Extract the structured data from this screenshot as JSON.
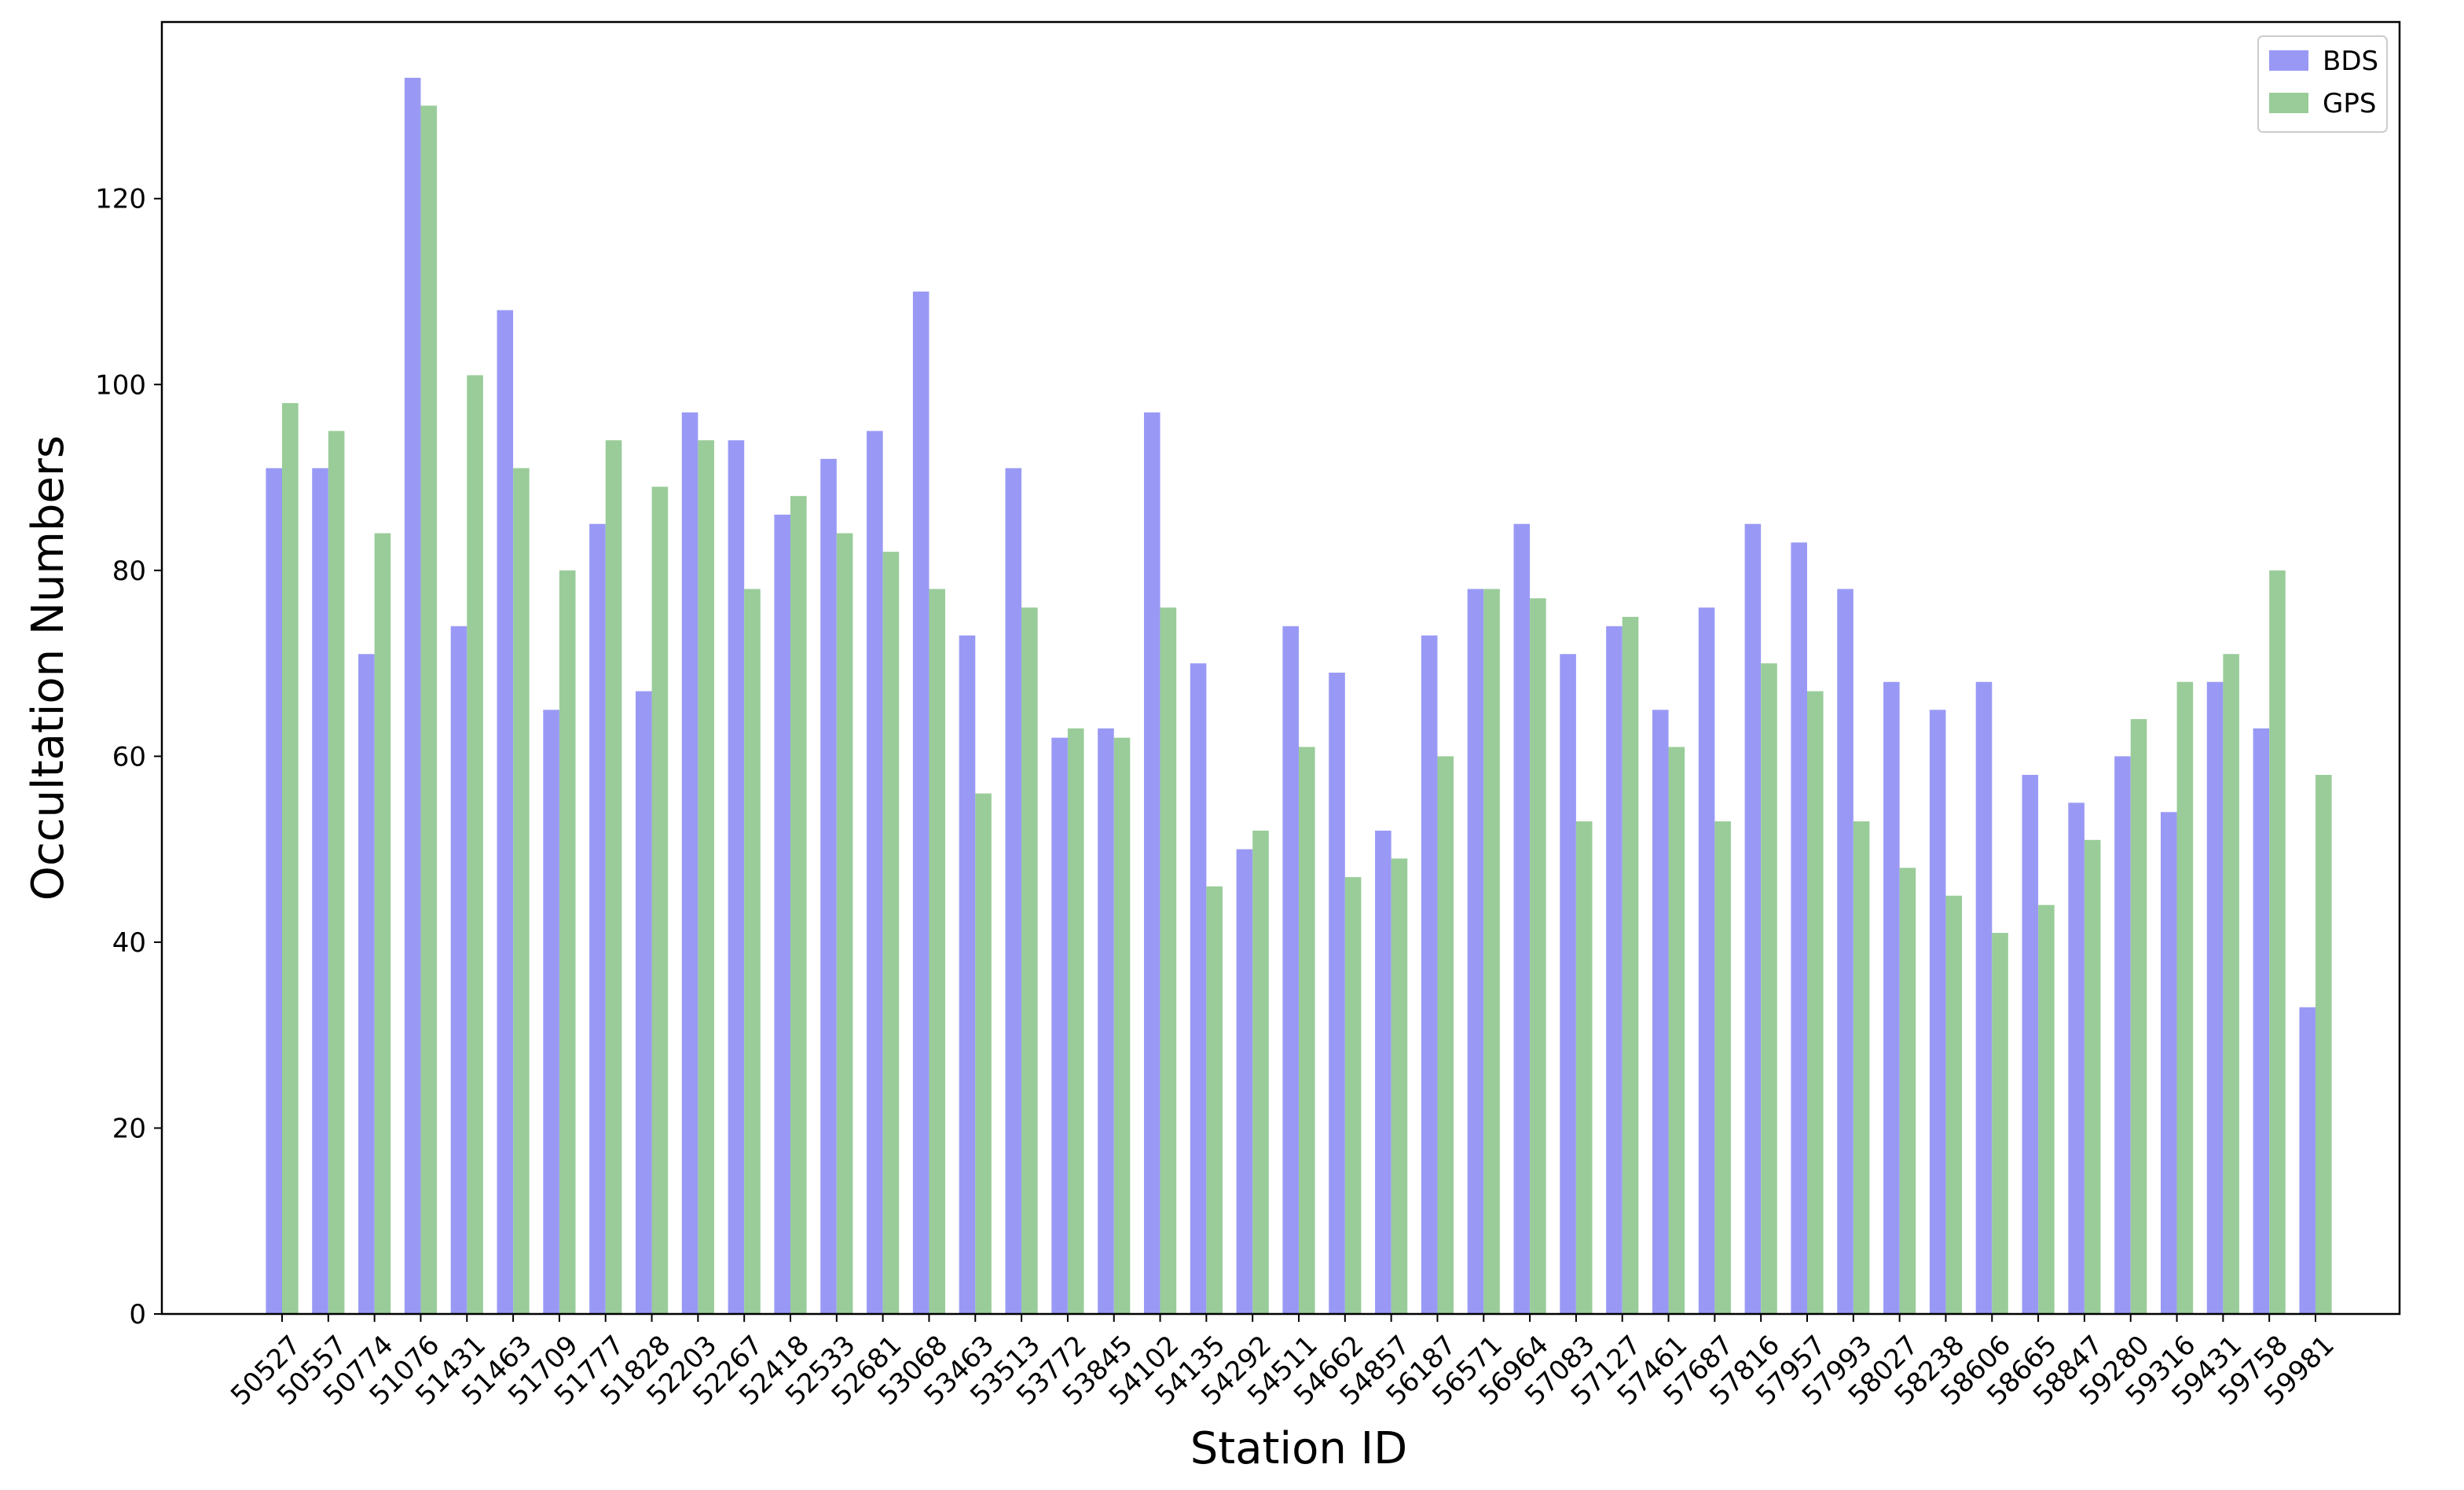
{
  "chart_data": {
    "type": "bar",
    "title": "",
    "xlabel": "Station ID",
    "ylabel": "Occultation Numbers",
    "ylim": [
      0,
      139
    ],
    "yticks": [
      0,
      20,
      40,
      60,
      80,
      100,
      120
    ],
    "grid": false,
    "legend_position": "top-right",
    "categories": [
      "50527",
      "50557",
      "50774",
      "51076",
      "51431",
      "51463",
      "51709",
      "51777",
      "51828",
      "52203",
      "52267",
      "52418",
      "52533",
      "52681",
      "53068",
      "53463",
      "53513",
      "53772",
      "53845",
      "54102",
      "54135",
      "54292",
      "54511",
      "54662",
      "54857",
      "56187",
      "56571",
      "56964",
      "57083",
      "57127",
      "57461",
      "57687",
      "57816",
      "57957",
      "57993",
      "58027",
      "58238",
      "58606",
      "58665",
      "58847",
      "59280",
      "59316",
      "59431",
      "59758",
      "59981"
    ],
    "series": [
      {
        "name": "BDS",
        "color": "#9999f5",
        "values": [
          91,
          91,
          71,
          133,
          74,
          108,
          65,
          85,
          67,
          97,
          94,
          86,
          92,
          95,
          110,
          73,
          91,
          62,
          63,
          97,
          70,
          50,
          74,
          69,
          52,
          73,
          78,
          85,
          71,
          74,
          65,
          76,
          85,
          83,
          78,
          68,
          65,
          68,
          58,
          55,
          60,
          54,
          68,
          63,
          33
        ]
      },
      {
        "name": "GPS",
        "color": "#99cc99",
        "values": [
          98,
          95,
          84,
          130,
          101,
          91,
          80,
          94,
          89,
          94,
          78,
          88,
          84,
          82,
          78,
          56,
          76,
          63,
          62,
          76,
          46,
          52,
          61,
          47,
          49,
          60,
          78,
          77,
          53,
          75,
          61,
          53,
          70,
          67,
          53,
          48,
          45,
          41,
          44,
          51,
          64,
          68,
          71,
          80,
          58
        ]
      }
    ]
  }
}
